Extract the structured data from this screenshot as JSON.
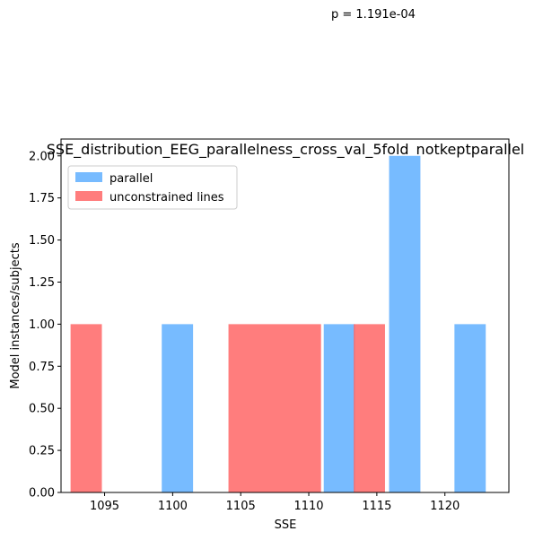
{
  "annotation": "p = 1.191e-04",
  "colors": {
    "parallel": "#77bbff",
    "unconstrained": "#ff6666",
    "overlap": "#b85f98"
  },
  "chart_data": {
    "type": "bar",
    "title": "SSE_distribution_EEG_parallelness_cross_val_5fold_notkeptparallel",
    "xlabel": "SSE",
    "ylabel": "Model instances/subjects",
    "xlim": [
      1091.8,
      1124.7
    ],
    "ylim": [
      0,
      2.1
    ],
    "xticks": [
      {
        "value": 1095,
        "label": "1095"
      },
      {
        "value": 1100,
        "label": "1100"
      },
      {
        "value": 1105,
        "label": "1105"
      },
      {
        "value": 1110,
        "label": "1110"
      },
      {
        "value": 1115,
        "label": "1115"
      },
      {
        "value": 1120,
        "label": "1120"
      }
    ],
    "yticks": [
      {
        "value": 0,
        "label": "0.00"
      },
      {
        "value": 0.25,
        "label": "0.25"
      },
      {
        "value": 0.5,
        "label": "0.50"
      },
      {
        "value": 0.75,
        "label": "0.75"
      },
      {
        "value": 1.0,
        "label": "1.00"
      },
      {
        "value": 1.25,
        "label": "1.25"
      },
      {
        "value": 1.5,
        "label": "1.50"
      },
      {
        "value": 1.75,
        "label": "1.75"
      },
      {
        "value": 2.0,
        "label": "2.00"
      }
    ],
    "legend_position": "top-left",
    "series": [
      {
        "name": "parallel",
        "color": "#77bbff",
        "bars": [
          {
            "x0": 1099.2,
            "x1": 1101.5,
            "value": 1
          },
          {
            "x0": 1111.1,
            "x1": 1113.4,
            "value": 1
          },
          {
            "x0": 1115.9,
            "x1": 1118.2,
            "value": 2
          },
          {
            "x0": 1120.7,
            "x1": 1123.0,
            "value": 1
          }
        ]
      },
      {
        "name": "unconstrained lines",
        "color": "#ff6666",
        "bars": [
          {
            "x0": 1092.5,
            "x1": 1094.8,
            "value": 1
          },
          {
            "x0": 1104.1,
            "x1": 1110.9,
            "value": 1
          },
          {
            "x0": 1113.3,
            "x1": 1115.6,
            "value": 1
          }
        ]
      }
    ]
  }
}
